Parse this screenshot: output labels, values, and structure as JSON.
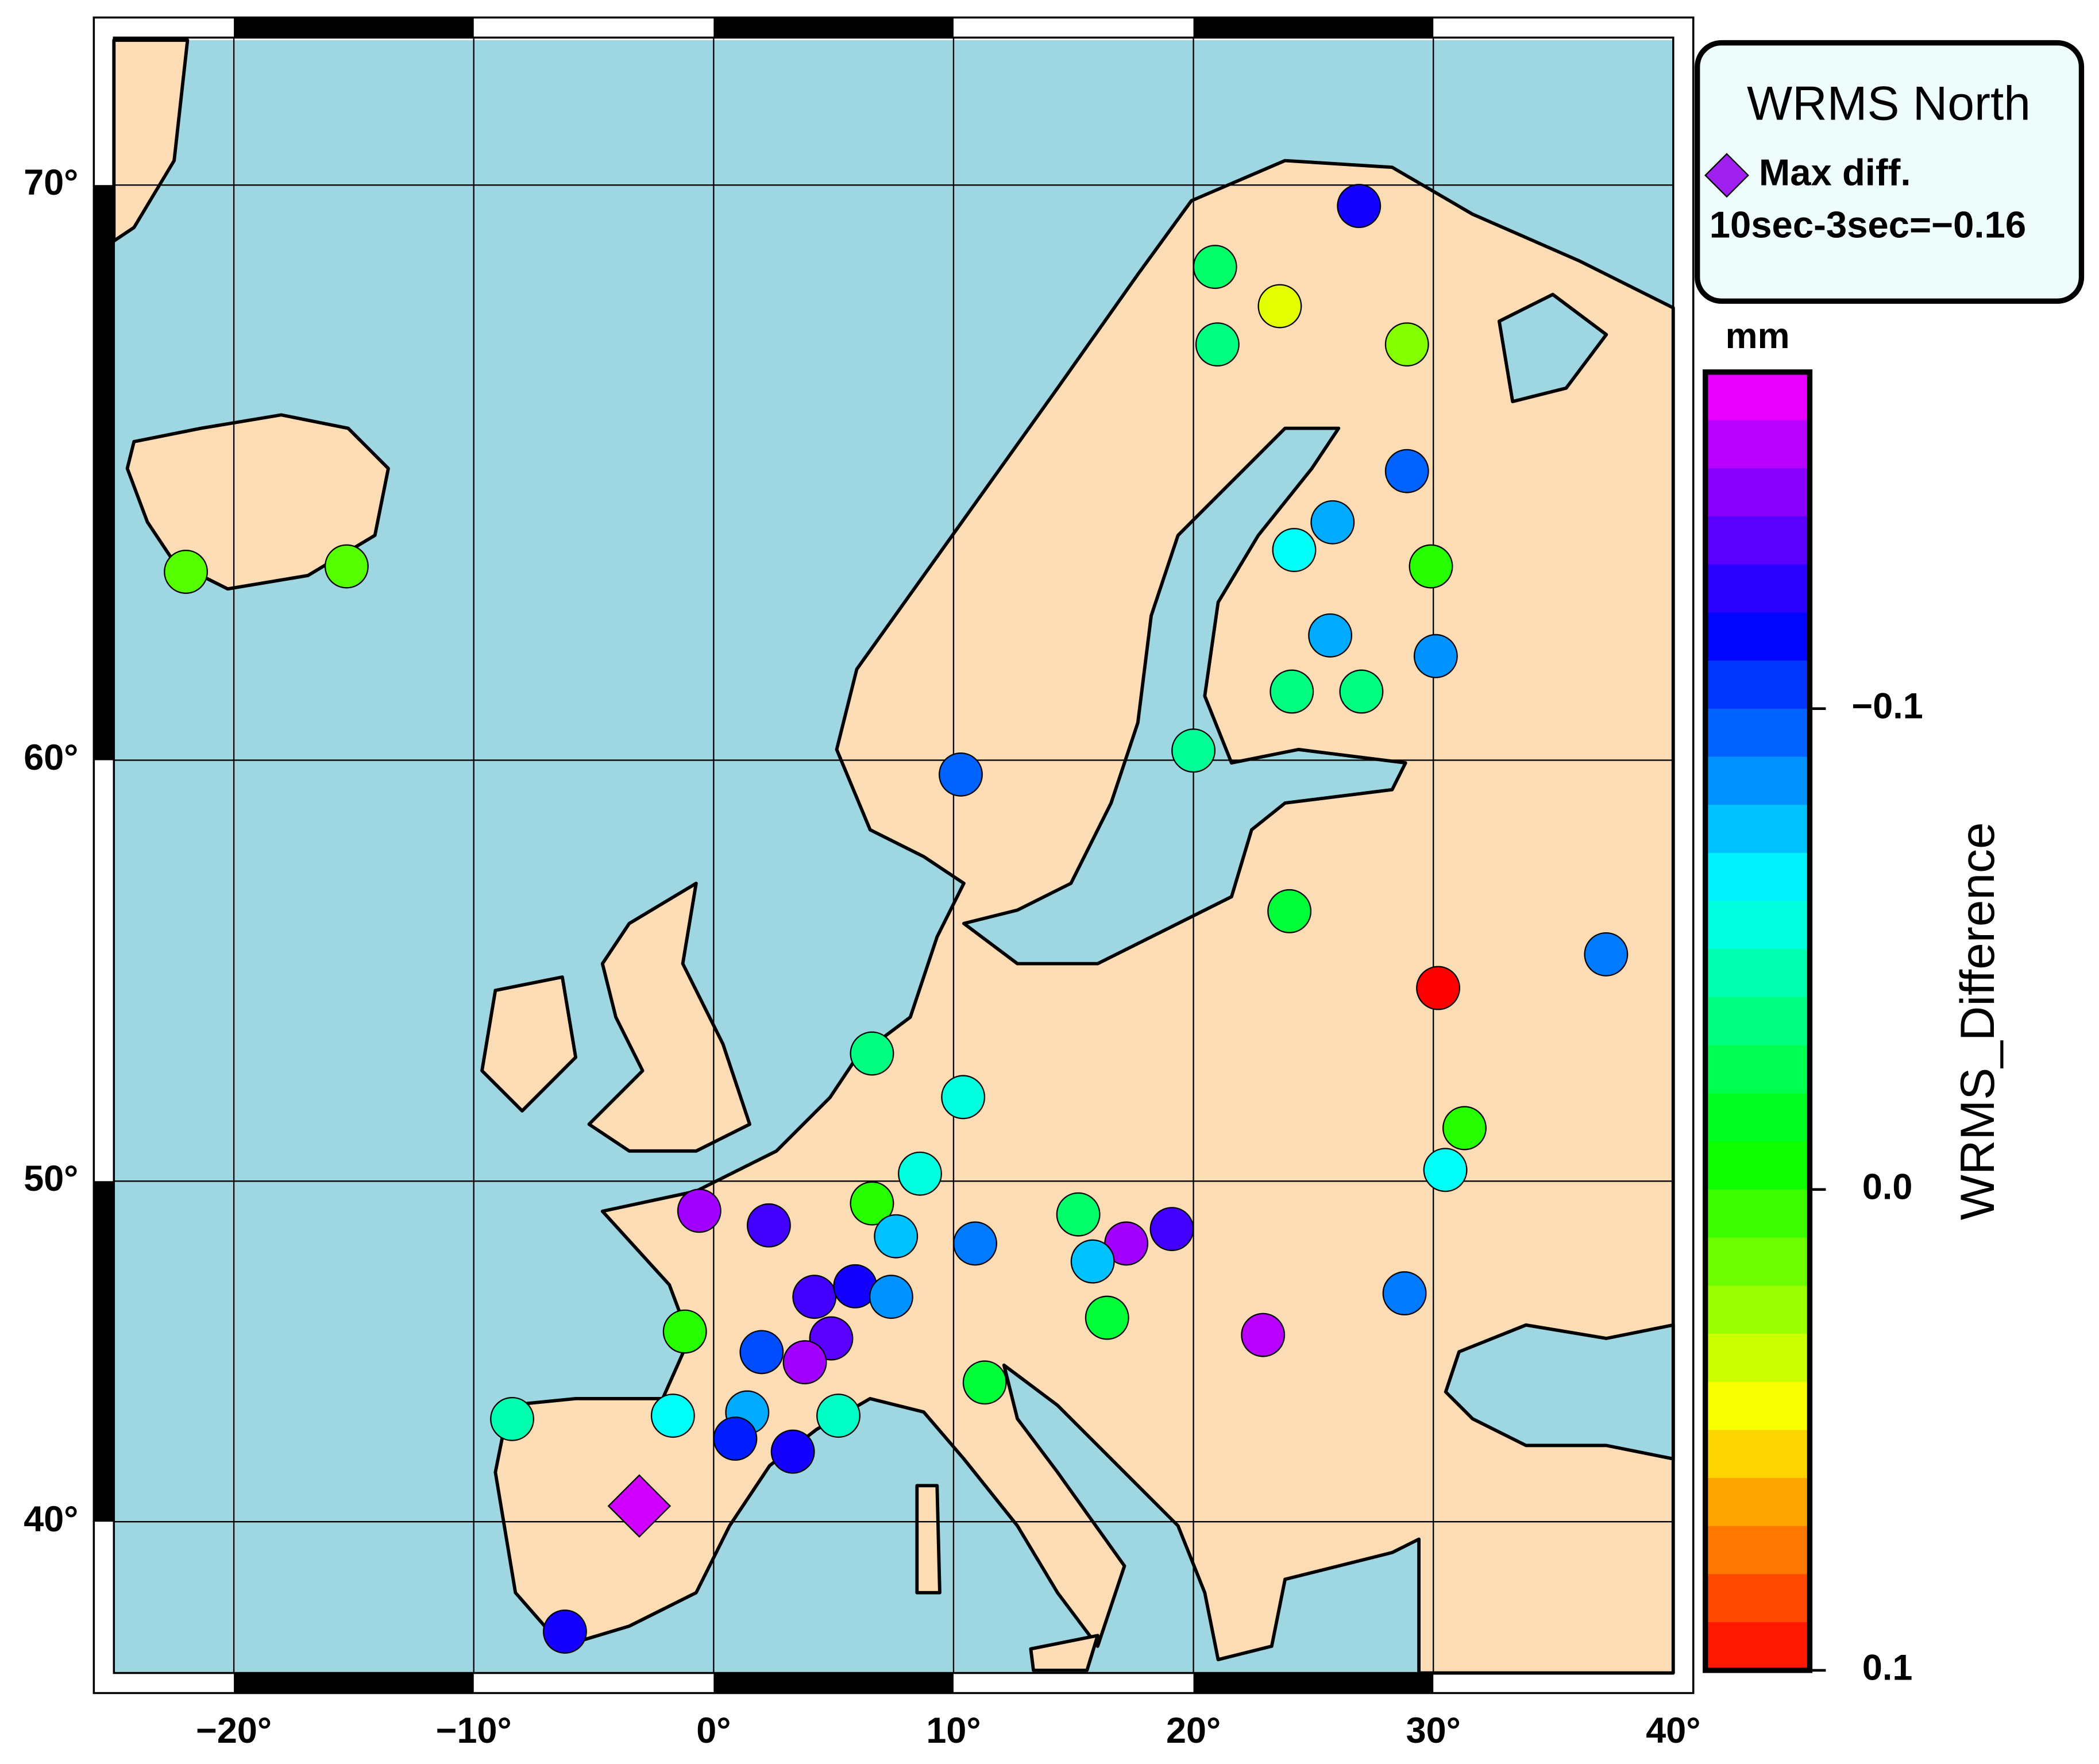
{
  "map": {
    "type": "scatter-map",
    "title": "WRMS North",
    "projection": "mercator",
    "xlim": [
      -25,
      40
    ],
    "ylim": [
      35,
      72
    ],
    "xticks": [
      {
        "value": -20,
        "label": "−20°"
      },
      {
        "value": -10,
        "label": "−10°"
      },
      {
        "value": 0,
        "label": "0°"
      },
      {
        "value": 10,
        "label": "10°"
      },
      {
        "value": 20,
        "label": "20°"
      },
      {
        "value": 30,
        "label": "30°"
      },
      {
        "value": 40,
        "label": "40°"
      }
    ],
    "yticks": [
      {
        "value": 40,
        "label": "40°"
      },
      {
        "value": 50,
        "label": "50°"
      },
      {
        "value": 60,
        "label": "60°"
      },
      {
        "value": 70,
        "label": "70°"
      }
    ],
    "grid": true,
    "colorbar": {
      "label": "WRMS_Difference",
      "unit": "mm",
      "clim": [
        -0.17,
        0.1
      ],
      "ticks": [
        {
          "value": -0.1,
          "label": "−0.1"
        },
        {
          "value": 0,
          "label": "0.0"
        },
        0.1
      ]
    },
    "legend": {
      "max_diff_label": "Max diff.",
      "max_diff_text": "10sec-3sec=−0.16"
    },
    "max_diff": {
      "lon": -3.1,
      "lat": 40.5,
      "value": -0.16
    },
    "stations": {
      "lon": [
        -22.0,
        -15.3,
        26.9,
        20.9,
        23.6,
        28.9,
        21.0,
        28.9,
        25.8,
        24.2,
        29.9,
        25.7,
        30.1,
        24.1,
        27.0,
        20.0,
        10.3,
        24.0,
        37.2,
        30.2,
        6.6,
        10.4,
        31.3,
        30.5,
        8.6,
        -0.6,
        2.3,
        6.6,
        15.2,
        19.1,
        17.2,
        7.6,
        10.9,
        15.8,
        4.2,
        5.9,
        7.4,
        28.8,
        16.4,
        22.9,
        -1.2,
        4.9,
        2.0,
        3.8,
        11.3,
        -8.4,
        -1.7,
        1.4,
        5.2,
        0.9,
        3.3,
        -6.2
      ],
      "lat": [
        63.7,
        63.8,
        69.7,
        68.8,
        68.2,
        67.6,
        67.6,
        65.5,
        64.6,
        64.1,
        63.8,
        62.5,
        62.1,
        61.4,
        61.4,
        60.2,
        59.7,
        56.7,
        55.7,
        54.9,
        53.3,
        52.2,
        51.4,
        50.3,
        50.2,
        49.2,
        48.8,
        49.4,
        49.1,
        48.7,
        48.3,
        48.5,
        48.3,
        47.8,
        46.8,
        47.1,
        46.8,
        46.9,
        46.2,
        45.7,
        45.8,
        45.6,
        45.2,
        44.9,
        44.3,
        43.2,
        43.3,
        43.4,
        43.3,
        42.6,
        42.2,
        36.4
      ],
      "values": [
        0.01,
        0.01,
        -0.12,
        -0.03,
        0.04,
        0.02,
        -0.035,
        -0.095,
        -0.08,
        -0.06,
        0.0,
        -0.08,
        -0.085,
        -0.035,
        -0.035,
        -0.04,
        -0.095,
        -0.02,
        -0.09,
        0.1,
        -0.035,
        -0.055,
        0.0,
        -0.06,
        -0.055,
        -0.15,
        -0.13,
        0.0,
        -0.03,
        -0.13,
        -0.15,
        -0.075,
        -0.09,
        -0.075,
        -0.13,
        -0.12,
        -0.085,
        -0.09,
        -0.02,
        -0.155,
        0.0,
        -0.135,
        -0.1,
        -0.15,
        -0.02,
        -0.045,
        -0.06,
        -0.08,
        -0.05,
        -0.11,
        -0.12,
        -0.12
      ]
    }
  }
}
